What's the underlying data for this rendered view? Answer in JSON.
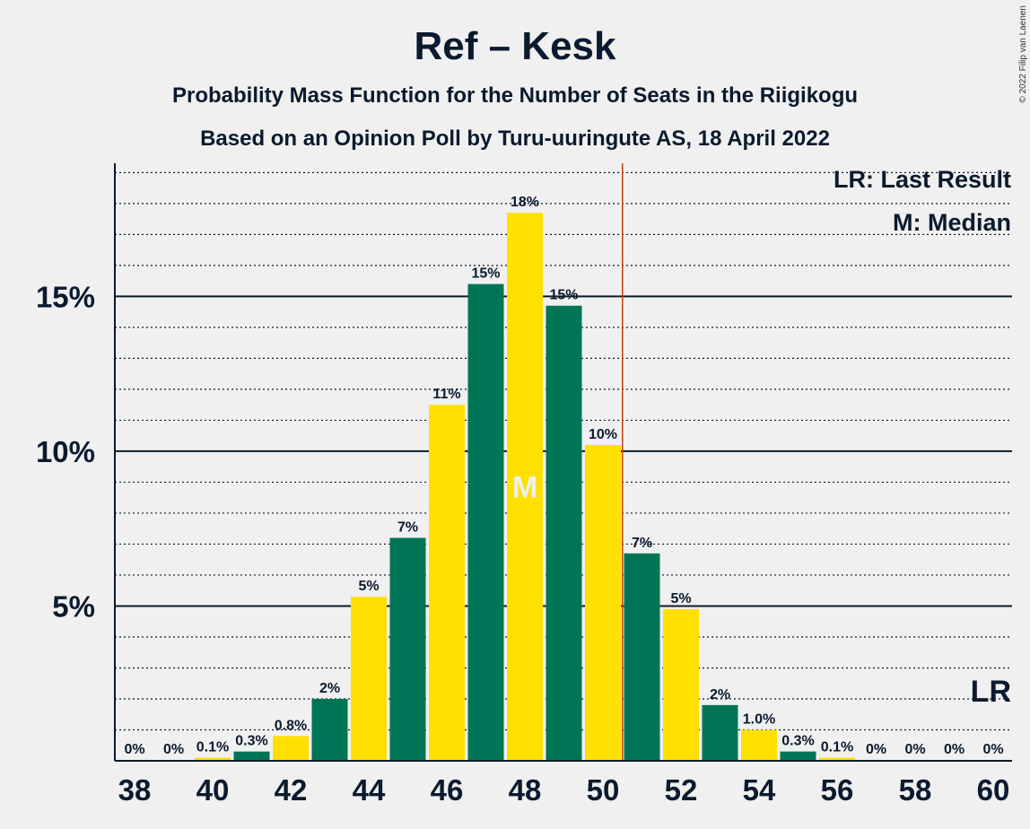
{
  "title": "Ref – Kesk",
  "subtitle1": "Probability Mass Function for the Number of Seats in the Riigikogu",
  "subtitle2": "Based on an Opinion Poll by Turu-uuringute AS, 18 April 2022",
  "credit": "© 2022 Filip van Laenen",
  "legend": {
    "lr": "LR: Last Result",
    "median": "M: Median"
  },
  "colors": {
    "green": "#007556",
    "yellow": "#ffe000",
    "last_result_line": "#c2410c",
    "text": "#0b1a2e"
  },
  "chart_data": {
    "type": "bar",
    "x": [
      38,
      39,
      40,
      41,
      42,
      43,
      44,
      45,
      46,
      47,
      48,
      49,
      50,
      51,
      52,
      53,
      54,
      55,
      56,
      57,
      58,
      59,
      60
    ],
    "values": [
      0,
      0,
      0.1,
      0.3,
      0.8,
      2.0,
      5.3,
      7.2,
      11.5,
      15.4,
      17.7,
      14.7,
      10.2,
      6.7,
      4.9,
      1.8,
      1.0,
      0.3,
      0.1,
      0,
      0,
      0,
      0
    ],
    "labels": [
      "0%",
      "0%",
      "0.1%",
      "0.3%",
      "0.8%",
      "2%",
      "5%",
      "7%",
      "11%",
      "15%",
      "18%",
      "15%",
      "10%",
      "7%",
      "5%",
      "2%",
      "1.0%",
      "0.3%",
      "0.1%",
      "0%",
      "0%",
      "0%",
      "0%"
    ],
    "x_tick_labels": [
      "38",
      "40",
      "42",
      "44",
      "46",
      "48",
      "50",
      "52",
      "54",
      "56",
      "58",
      "60"
    ],
    "y_tick_labels": [
      "5%",
      "10%",
      "15%"
    ],
    "y_ticks": [
      5,
      10,
      15
    ],
    "ylim": [
      0,
      19.3
    ],
    "minor_grid_step": 1,
    "median": 48,
    "median_label": "M",
    "last_result": 50.5,
    "last_result_label": "LR"
  }
}
